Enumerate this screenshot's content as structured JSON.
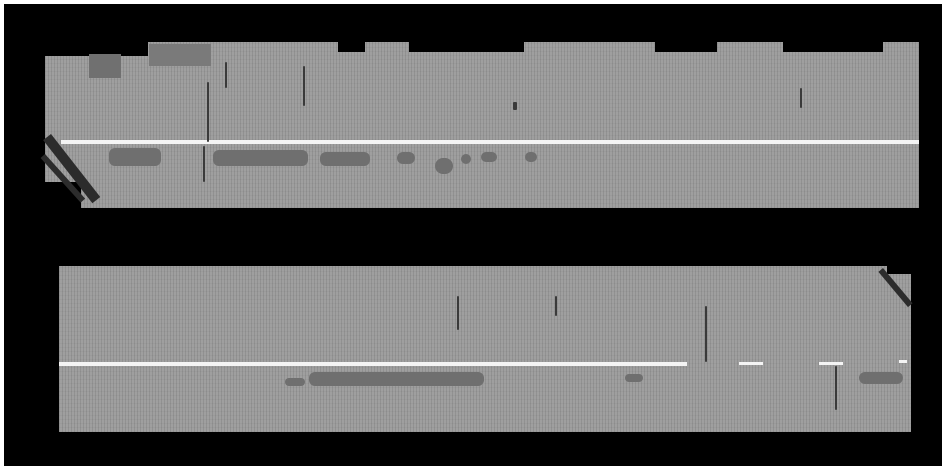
{
  "scene": {
    "description_colors": {
      "background": "#000000",
      "pavement": "#9a9a9a",
      "lane_marking": "#f4f4f4",
      "patch": "#6f6f6f"
    },
    "panels": [
      {
        "name": "upper-pavement-strip"
      },
      {
        "name": "lower-pavement-strip"
      }
    ]
  }
}
